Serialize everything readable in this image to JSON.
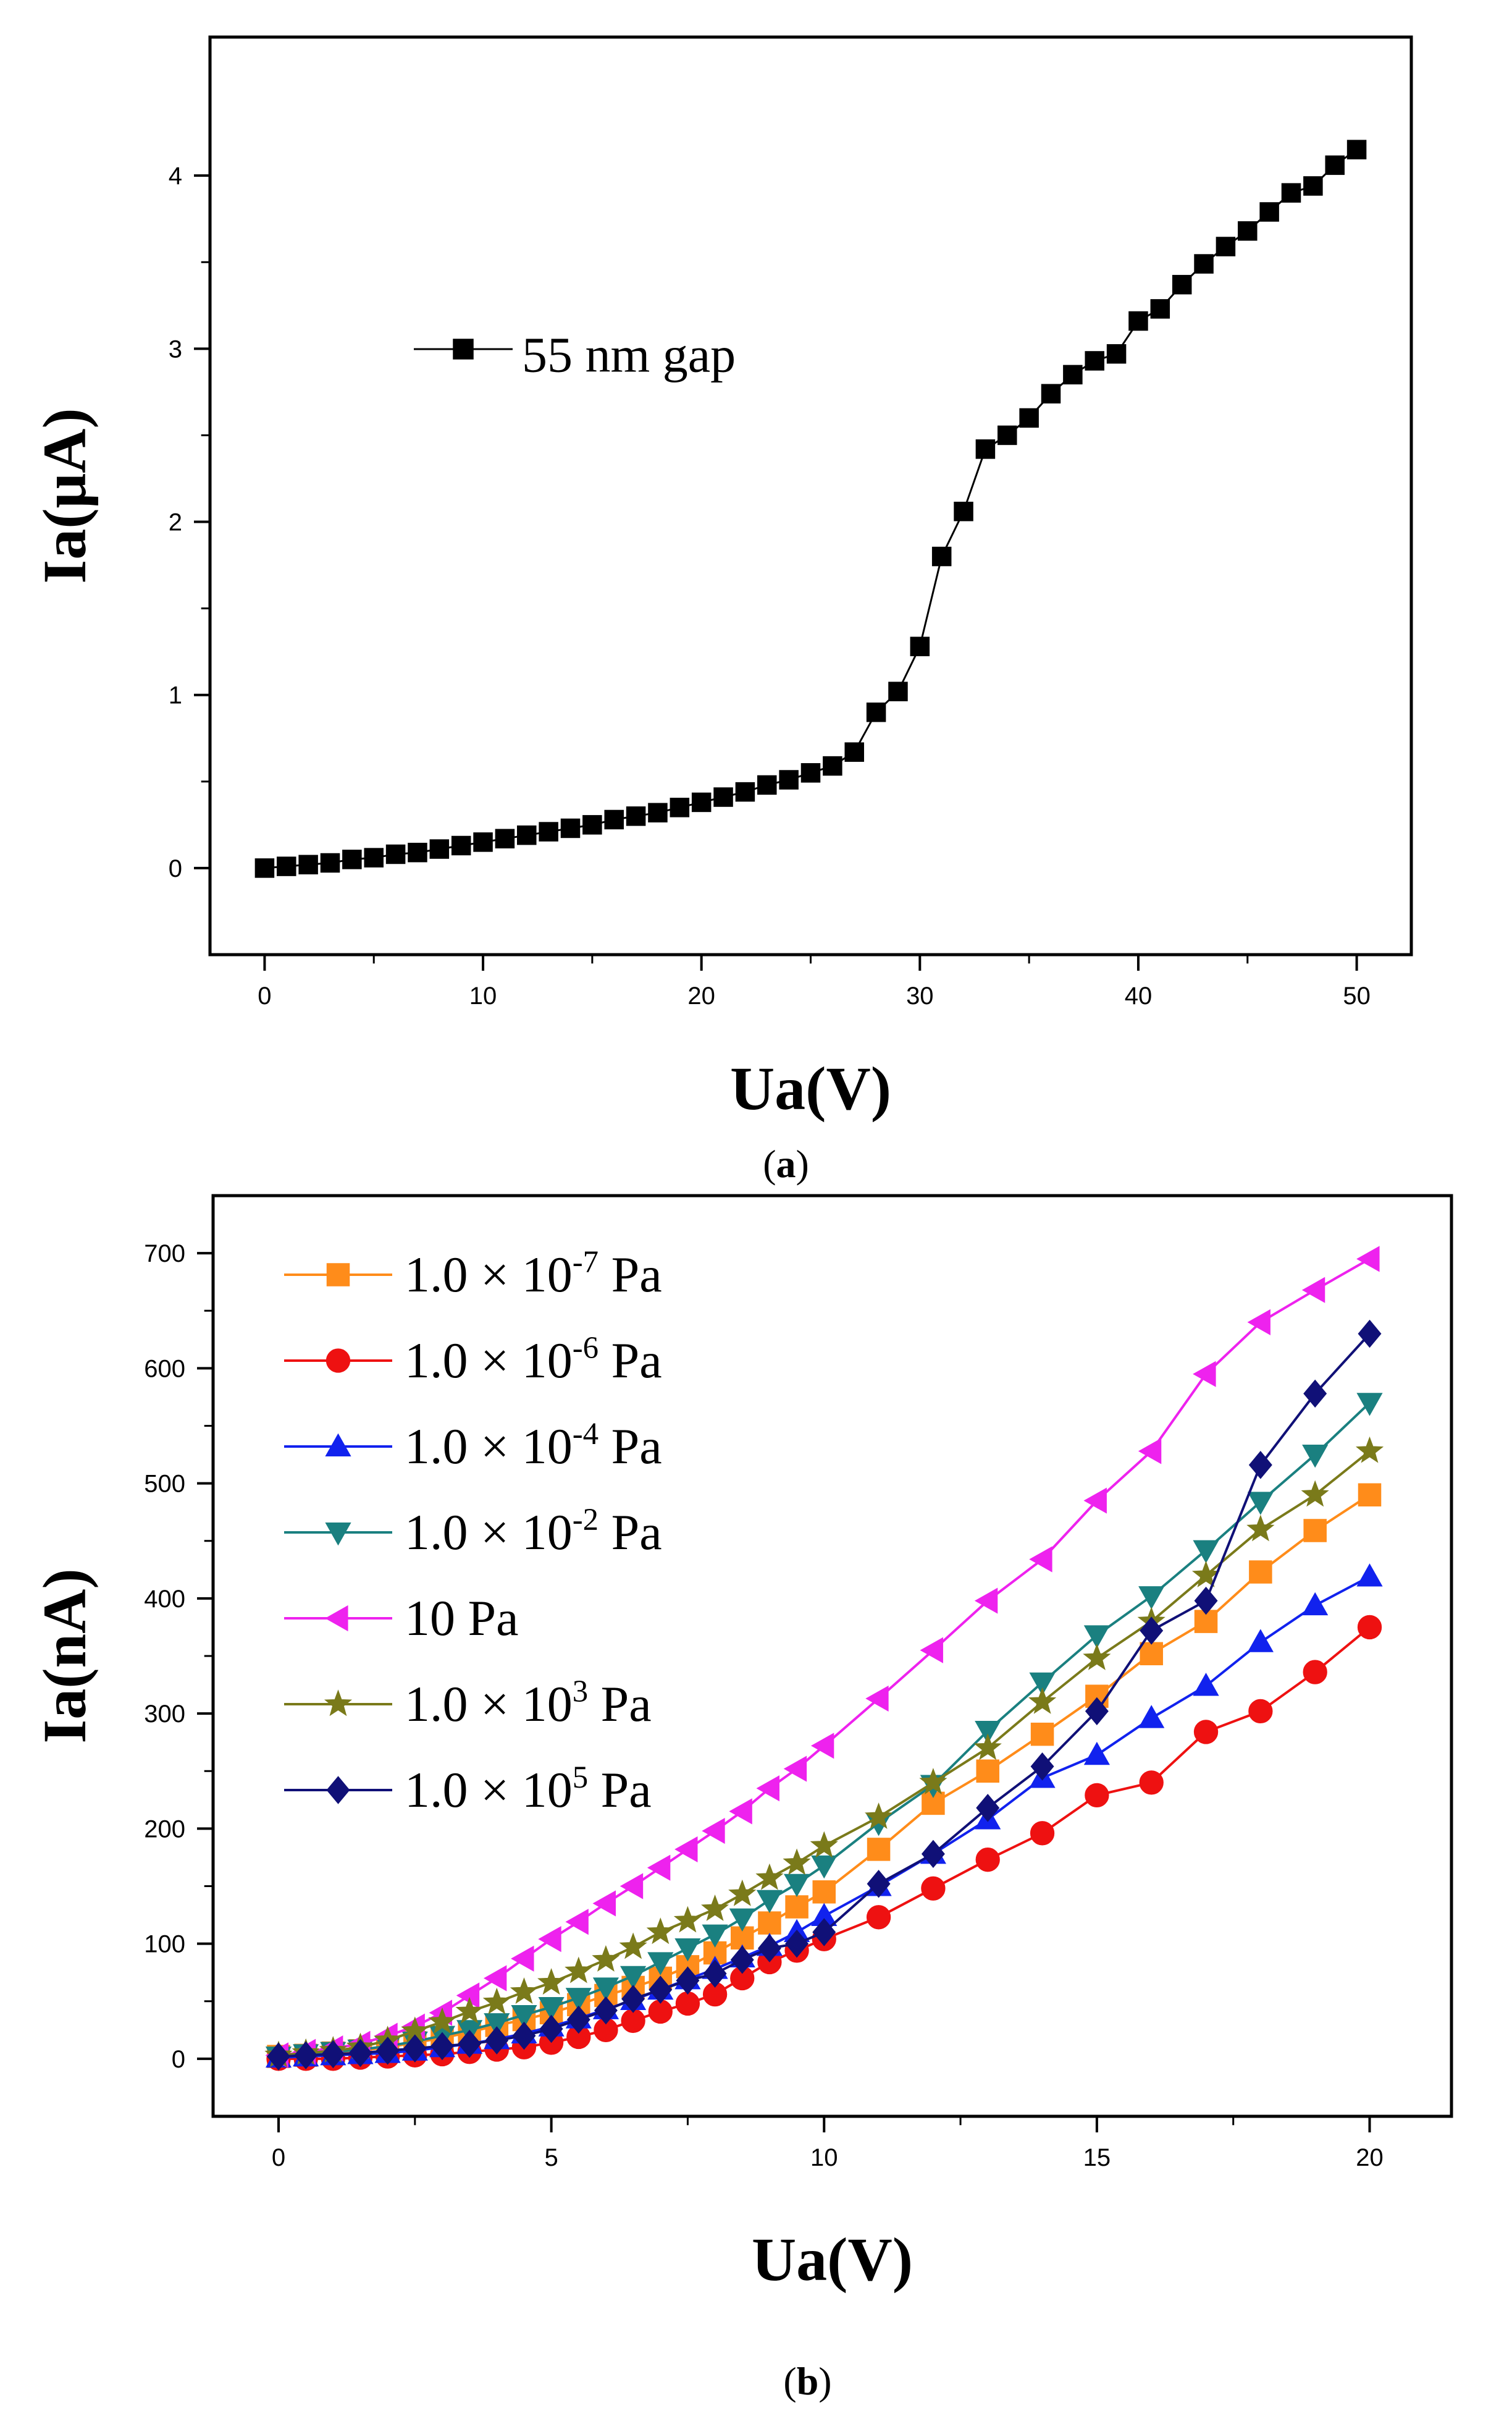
{
  "chart_data": [
    {
      "type": "line",
      "panel_label": "a",
      "xlabel": "Ua(V)",
      "ylabel": "Ia(μA)",
      "xlim": [
        -2.5,
        52.5
      ],
      "ylim": [
        -0.5,
        4.8
      ],
      "x_ticks": [
        0,
        10,
        20,
        30,
        40,
        50
      ],
      "y_ticks": [
        0,
        1,
        2,
        3,
        4
      ],
      "grid": false,
      "legend_position": "upper-left",
      "series": [
        {
          "name": "55 nm gap",
          "color": "#000000",
          "marker": "square",
          "x": [
            0,
            1,
            2,
            3,
            4,
            5,
            6,
            7,
            8,
            9,
            10,
            11,
            12,
            13,
            14,
            15,
            16,
            17,
            18,
            19,
            20,
            21,
            22,
            23,
            24,
            25,
            26,
            27,
            28,
            29,
            30,
            31,
            32,
            33,
            34,
            35,
            36,
            37,
            38,
            39,
            40,
            41,
            42,
            43,
            44,
            45,
            46,
            47,
            48,
            49,
            50
          ],
          "y": [
            0.0,
            0.01,
            0.02,
            0.03,
            0.05,
            0.06,
            0.08,
            0.09,
            0.11,
            0.13,
            0.15,
            0.17,
            0.19,
            0.21,
            0.23,
            0.25,
            0.28,
            0.3,
            0.32,
            0.35,
            0.38,
            0.41,
            0.44,
            0.48,
            0.51,
            0.55,
            0.59,
            0.67,
            0.9,
            1.02,
            1.28,
            1.8,
            2.06,
            2.42,
            2.5,
            2.6,
            2.74,
            2.85,
            2.93,
            2.97,
            3.16,
            3.23,
            3.37,
            3.49,
            3.59,
            3.68,
            3.79,
            3.9,
            3.94,
            4.06,
            4.15
          ]
        }
      ]
    },
    {
      "type": "line",
      "panel_label": "b",
      "xlabel": "Ua(V)",
      "ylabel": "Ia(nA)",
      "xlim": [
        -1.2,
        21.5
      ],
      "ylim": [
        -50,
        750
      ],
      "x_ticks": [
        0,
        5,
        10,
        15,
        20
      ],
      "y_ticks": [
        0,
        100,
        200,
        300,
        400,
        500,
        600,
        700
      ],
      "grid": false,
      "legend_position": "upper-left",
      "series": [
        {
          "name": "1.0 × 10-7 Pa",
          "name_base": "1.0 × 10",
          "name_exp": "-7",
          "name_unit": "Pa",
          "color": "#ff8c1a",
          "marker": "square",
          "x": [
            0,
            0.5,
            1,
            1.5,
            2,
            2.5,
            3,
            3.5,
            4,
            4.5,
            5,
            5.5,
            6,
            6.5,
            7,
            7.5,
            8,
            8.5,
            9,
            9.5,
            10,
            11,
            12,
            13,
            14,
            15,
            16,
            17,
            18,
            19,
            20
          ],
          "y": [
            2,
            3,
            5,
            7,
            10,
            14,
            18,
            23,
            29,
            34,
            40,
            47,
            55,
            62,
            70,
            80,
            92,
            105,
            118,
            132,
            145,
            182,
            222,
            250,
            282,
            315,
            352,
            380,
            423,
            459,
            490
          ]
        },
        {
          "name": "1.0 × 10-6 Pa",
          "name_base": "1.0 × 10",
          "name_exp": "-6",
          "name_unit": "Pa",
          "color": "#ee1111",
          "marker": "circle",
          "x": [
            0,
            0.5,
            1,
            1.5,
            2,
            2.5,
            3,
            3.5,
            4,
            4.5,
            5,
            5.5,
            6,
            6.5,
            7,
            7.5,
            8,
            8.5,
            9,
            9.5,
            10,
            11,
            12,
            13,
            14,
            15,
            16,
            17,
            18,
            19,
            20
          ],
          "y": [
            0,
            0,
            0,
            1,
            2,
            3,
            4,
            6,
            8,
            10,
            14,
            19,
            25,
            33,
            41,
            48,
            56,
            70,
            84,
            94,
            104,
            123,
            148,
            173,
            196,
            229,
            240,
            284,
            302,
            336,
            375
          ]
        },
        {
          "name": "1.0 × 10-4 Pa",
          "name_base": "1.0 × 10",
          "name_exp": "-4",
          "name_unit": "Pa",
          "color": "#1122ee",
          "marker": "triangle-up",
          "x": [
            0,
            0.5,
            1,
            1.5,
            2,
            2.5,
            3,
            3.5,
            4,
            4.5,
            5,
            5.5,
            6,
            6.5,
            7,
            7.5,
            8,
            8.5,
            9,
            9.5,
            10,
            11,
            12,
            13,
            14,
            15,
            16,
            17,
            18,
            19,
            20
          ],
          "y": [
            1,
            2,
            3,
            4,
            5,
            7,
            10,
            13,
            17,
            22,
            28,
            35,
            43,
            51,
            60,
            69,
            78,
            88,
            98,
            110,
            124,
            150,
            178,
            208,
            244,
            264,
            296,
            324,
            362,
            394,
            419
          ]
        },
        {
          "name": "1.0 × 10-2 Pa",
          "name_base": "1.0 × 10",
          "name_exp": "-2",
          "name_unit": "Pa",
          "color": "#1a8080",
          "marker": "triangle-down",
          "x": [
            0,
            0.5,
            1,
            1.5,
            2,
            2.5,
            3,
            3.5,
            4,
            4.5,
            5,
            5.5,
            6,
            6.5,
            7,
            7.5,
            8,
            8.5,
            9,
            9.5,
            10,
            11,
            12,
            13,
            14,
            15,
            16,
            17,
            18,
            19,
            20
          ],
          "y": [
            2,
            4,
            6,
            8,
            11,
            15,
            20,
            25,
            31,
            38,
            45,
            53,
            62,
            72,
            84,
            96,
            108,
            122,
            138,
            152,
            168,
            205,
            238,
            285,
            327,
            368,
            402,
            442,
            484,
            525,
            570
          ]
        },
        {
          "name": "10 Pa",
          "name_base": "10",
          "name_exp": "",
          "name_unit": "Pa",
          "color": "#ee22ee",
          "marker": "triangle-left",
          "x": [
            0,
            0.5,
            1,
            1.5,
            2,
            2.5,
            3,
            3.5,
            4,
            4.5,
            5,
            5.5,
            6,
            6.5,
            7,
            7.5,
            8,
            8.5,
            9,
            9.5,
            10,
            11,
            12,
            13,
            14,
            15,
            16,
            17,
            18,
            19,
            20
          ],
          "y": [
            3,
            6,
            9,
            13,
            20,
            28,
            40,
            55,
            70,
            87,
            104,
            119,
            135,
            150,
            166,
            182,
            198,
            215,
            235,
            252,
            272,
            313,
            355,
            398,
            434,
            485,
            528,
            595,
            640,
            668,
            695
          ]
        },
        {
          "name": "1.0 × 103 Pa",
          "name_base": "1.0 × 10",
          "name_exp": "3",
          "name_unit": "Pa",
          "color": "#7a7a1a",
          "marker": "star",
          "x": [
            0,
            0.5,
            1,
            1.5,
            2,
            2.5,
            3,
            3.5,
            4,
            4.5,
            5,
            5.5,
            6,
            6.5,
            7,
            7.5,
            8,
            8.5,
            9,
            9.5,
            10,
            11,
            12,
            13,
            14,
            15,
            16,
            17,
            18,
            19,
            20
          ],
          "y": [
            3,
            5,
            7,
            10,
            16,
            24,
            32,
            41,
            49,
            58,
            66,
            76,
            86,
            97,
            110,
            120,
            130,
            143,
            157,
            170,
            185,
            210,
            240,
            270,
            310,
            348,
            380,
            420,
            460,
            490,
            528
          ]
        },
        {
          "name": "1.0 × 105 Pa",
          "name_base": "1.0 × 10",
          "name_exp": "5",
          "name_unit": "Pa",
          "color": "#101077",
          "marker": "diamond",
          "x": [
            0,
            0.5,
            1,
            1.5,
            2,
            2.5,
            3,
            3.5,
            4,
            4.5,
            5,
            5.5,
            6,
            6.5,
            7,
            7.5,
            8,
            8.5,
            9,
            9.5,
            10,
            11,
            12,
            13,
            14,
            15,
            16,
            17,
            18,
            19,
            20
          ],
          "y": [
            2,
            3,
            4,
            5,
            7,
            9,
            11,
            13,
            16,
            20,
            26,
            34,
            42,
            52,
            60,
            68,
            74,
            86,
            96,
            100,
            110,
            152,
            178,
            218,
            254,
            302,
            372,
            398,
            516,
            578,
            630
          ]
        }
      ]
    }
  ]
}
